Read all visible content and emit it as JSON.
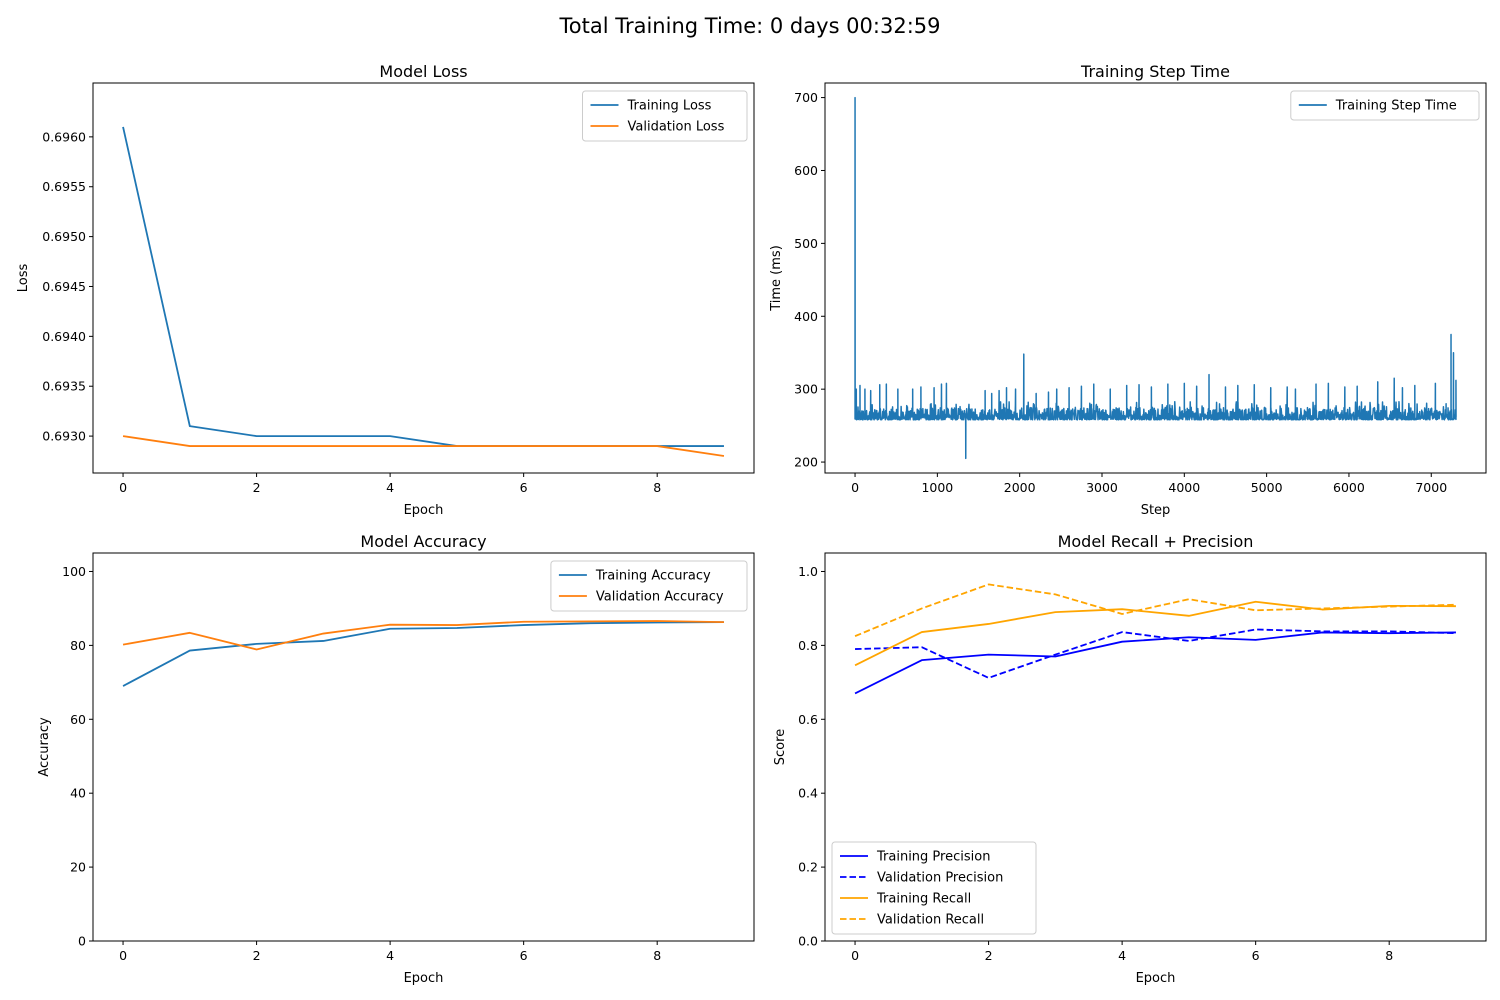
{
  "figure_title": "Total Training Time: 0 days 00:32:59",
  "colors": {
    "tab_blue": "#1f77b4",
    "tab_orange": "#ff7f0e",
    "precision_blue": "#0000ff",
    "recall_orange": "#ffa500"
  },
  "chart_data": [
    {
      "id": "loss",
      "type": "line",
      "title": "Model Loss",
      "xlabel": "Epoch",
      "ylabel": "Loss",
      "xlim": [
        -0.45,
        9.45
      ],
      "ylim": [
        0.69263,
        0.69654
      ],
      "xticks": [
        0,
        2,
        4,
        6,
        8
      ],
      "xtick_labels": [
        "0",
        "2",
        "4",
        "6",
        "8"
      ],
      "yticks": [
        0.693,
        0.6935,
        0.694,
        0.6945,
        0.695,
        0.6955,
        0.696
      ],
      "ytick_labels": [
        "0.6930",
        "0.6935",
        "0.6940",
        "0.6945",
        "0.6950",
        "0.6955",
        "0.6960"
      ],
      "legend_position": "upper-right",
      "x": [
        0,
        1,
        2,
        3,
        4,
        5,
        6,
        7,
        8,
        9
      ],
      "series": [
        {
          "name": "Training Loss",
          "color": "#1f77b4",
          "dash": "solid",
          "values": [
            0.6961,
            0.6931,
            0.693,
            0.693,
            0.693,
            0.6929,
            0.6929,
            0.6929,
            0.6929,
            0.6929
          ]
        },
        {
          "name": "Validation Loss",
          "color": "#ff7f0e",
          "dash": "solid",
          "values": [
            0.693,
            0.6929,
            0.6929,
            0.6929,
            0.6929,
            0.6929,
            0.6929,
            0.6929,
            0.6929,
            0.6928
          ]
        }
      ]
    },
    {
      "id": "steptime",
      "type": "line",
      "title": "Training Step Time",
      "xlabel": "Step",
      "ylabel": "Time (ms)",
      "xlim": [
        -365,
        7665
      ],
      "ylim": [
        185,
        720
      ],
      "xticks": [
        0,
        1000,
        2000,
        3000,
        4000,
        5000,
        6000,
        7000
      ],
      "xtick_labels": [
        "0",
        "1000",
        "2000",
        "3000",
        "4000",
        "5000",
        "6000",
        "7000"
      ],
      "yticks": [
        200,
        300,
        400,
        500,
        600,
        700
      ],
      "ytick_labels": [
        "200",
        "300",
        "400",
        "500",
        "600",
        "700"
      ],
      "legend_position": "upper-right",
      "series": [
        {
          "name": "Training Step Time",
          "color": "#1f77b4",
          "dash": "solid",
          "n_steps": 7300,
          "baseline": [
            258,
            275
          ],
          "spikes": [
            [
              0,
              700
            ],
            [
              15,
              300
            ],
            [
              60,
              305
            ],
            [
              120,
              300
            ],
            [
              190,
              298
            ],
            [
              300,
              306
            ],
            [
              380,
              307
            ],
            [
              520,
              300
            ],
            [
              700,
              300
            ],
            [
              800,
              303
            ],
            [
              960,
              302
            ],
            [
              1050,
              307
            ],
            [
              1110,
              308
            ],
            [
              1345,
              205
            ],
            [
              1400,
              272
            ],
            [
              1580,
              298
            ],
            [
              1660,
              294
            ],
            [
              1750,
              298
            ],
            [
              1840,
              302
            ],
            [
              1950,
              300
            ],
            [
              2050,
              348
            ],
            [
              2200,
              294
            ],
            [
              2350,
              296
            ],
            [
              2450,
              300
            ],
            [
              2600,
              302
            ],
            [
              2750,
              304
            ],
            [
              2900,
              307
            ],
            [
              3100,
              300
            ],
            [
              3300,
              305
            ],
            [
              3450,
              306
            ],
            [
              3600,
              303
            ],
            [
              3800,
              307
            ],
            [
              4000,
              308
            ],
            [
              4150,
              304
            ],
            [
              4300,
              320
            ],
            [
              4500,
              303
            ],
            [
              4650,
              305
            ],
            [
              4850,
              306
            ],
            [
              5050,
              302
            ],
            [
              5250,
              303
            ],
            [
              5350,
              300
            ],
            [
              5600,
              307
            ],
            [
              5750,
              308
            ],
            [
              5950,
              303
            ],
            [
              6100,
              304
            ],
            [
              6350,
              310
            ],
            [
              6550,
              315
            ],
            [
              6650,
              302
            ],
            [
              6800,
              305
            ],
            [
              7050,
              308
            ],
            [
              7180,
              280
            ],
            [
              7240,
              375
            ],
            [
              7270,
              350
            ],
            [
              7300,
              312
            ]
          ]
        }
      ]
    },
    {
      "id": "accuracy",
      "type": "line",
      "title": "Model Accuracy",
      "xlabel": "Epoch",
      "ylabel": "Accuracy",
      "xlim": [
        -0.45,
        9.45
      ],
      "ylim": [
        0,
        105
      ],
      "xticks": [
        0,
        2,
        4,
        6,
        8
      ],
      "xtick_labels": [
        "0",
        "2",
        "4",
        "6",
        "8"
      ],
      "yticks": [
        0,
        20,
        40,
        60,
        80,
        100
      ],
      "ytick_labels": [
        "0",
        "20",
        "40",
        "60",
        "80",
        "100"
      ],
      "legend_position": "upper-right",
      "x": [
        0,
        1,
        2,
        3,
        4,
        5,
        6,
        7,
        8,
        9
      ],
      "series": [
        {
          "name": "Training Accuracy",
          "color": "#1f77b4",
          "dash": "solid",
          "values": [
            69.0,
            78.6,
            80.4,
            81.2,
            84.5,
            84.7,
            85.5,
            86.0,
            86.2,
            86.3
          ]
        },
        {
          "name": "Validation Accuracy",
          "color": "#ff7f0e",
          "dash": "solid",
          "values": [
            80.2,
            83.4,
            78.9,
            83.2,
            85.6,
            85.5,
            86.4,
            86.5,
            86.6,
            86.3
          ]
        }
      ]
    },
    {
      "id": "recallprecision",
      "type": "line",
      "title": "Model Recall + Precision",
      "xlabel": "Epoch",
      "ylabel": "Score",
      "xlim": [
        -0.45,
        9.45
      ],
      "ylim": [
        0,
        1.05
      ],
      "xticks": [
        0,
        2,
        4,
        6,
        8
      ],
      "xtick_labels": [
        "0",
        "2",
        "4",
        "6",
        "8"
      ],
      "yticks": [
        0,
        0.2,
        0.4,
        0.6,
        0.8,
        1.0
      ],
      "ytick_labels": [
        "0.0",
        "0.2",
        "0.4",
        "0.6",
        "0.8",
        "1.0"
      ],
      "legend_position": "lower-left",
      "x": [
        0,
        1,
        2,
        3,
        4,
        5,
        6,
        7,
        8,
        9
      ],
      "series": [
        {
          "name": "Training Precision",
          "color": "#0000ff",
          "dash": "solid",
          "values": [
            0.67,
            0.76,
            0.775,
            0.77,
            0.81,
            0.822,
            0.815,
            0.835,
            0.833,
            0.835
          ]
        },
        {
          "name": "Validation Precision",
          "color": "#0000ff",
          "dash": "dashed",
          "values": [
            0.79,
            0.795,
            0.712,
            0.775,
            0.836,
            0.812,
            0.843,
            0.838,
            0.838,
            0.833
          ]
        },
        {
          "name": "Training Recall",
          "color": "#ffa500",
          "dash": "solid",
          "values": [
            0.746,
            0.836,
            0.858,
            0.89,
            0.898,
            0.88,
            0.918,
            0.897,
            0.907,
            0.906
          ]
        },
        {
          "name": "Validation Recall",
          "color": "#ffa500",
          "dash": "dashed",
          "values": [
            0.825,
            0.9,
            0.965,
            0.938,
            0.885,
            0.925,
            0.895,
            0.9,
            0.905,
            0.91
          ]
        }
      ]
    }
  ]
}
